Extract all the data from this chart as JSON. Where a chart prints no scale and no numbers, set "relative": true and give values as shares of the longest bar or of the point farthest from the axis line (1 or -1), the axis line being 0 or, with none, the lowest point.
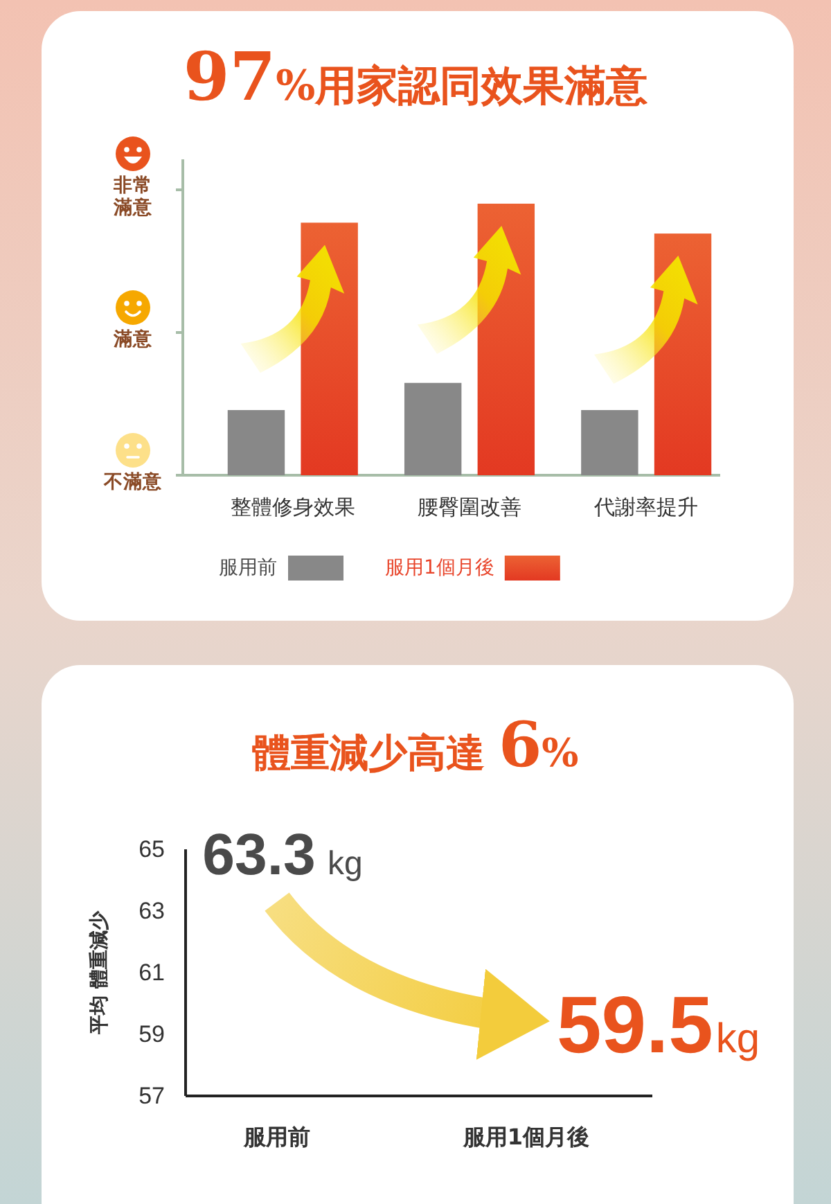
{
  "chart_data": [
    {
      "type": "bar",
      "title": "97%用家認同效果滿意",
      "categories": [
        "整體修身效果",
        "腰臀圍改善",
        "代謝率提升"
      ],
      "series": [
        {
          "name": "服用前",
          "color": "#888888",
          "values": [
            0.24,
            0.34,
            0.24
          ]
        },
        {
          "name": "服用1個月後",
          "color": "#e8442a",
          "values": [
            0.93,
            1,
            0.89
          ]
        }
      ],
      "relative": true,
      "annotations": [
        "非常滿意",
        "滿意",
        "不滿意"
      ],
      "legend": "bottom"
    },
    {
      "type": "line",
      "title": "體重減少高達 6%",
      "ylabel": "平均 體重減少",
      "categories": [
        "服用前",
        "服用1個月後"
      ],
      "series": [
        {
          "color": "#f3cc3c",
          "values": [
            63.3,
            59.5
          ],
          "value_labels": [
            "63.3 kg",
            "59.5kg"
          ]
        }
      ],
      "ylim": [
        57,
        65
      ],
      "yticks": [
        57,
        59,
        61,
        63,
        65
      ]
    }
  ]
}
